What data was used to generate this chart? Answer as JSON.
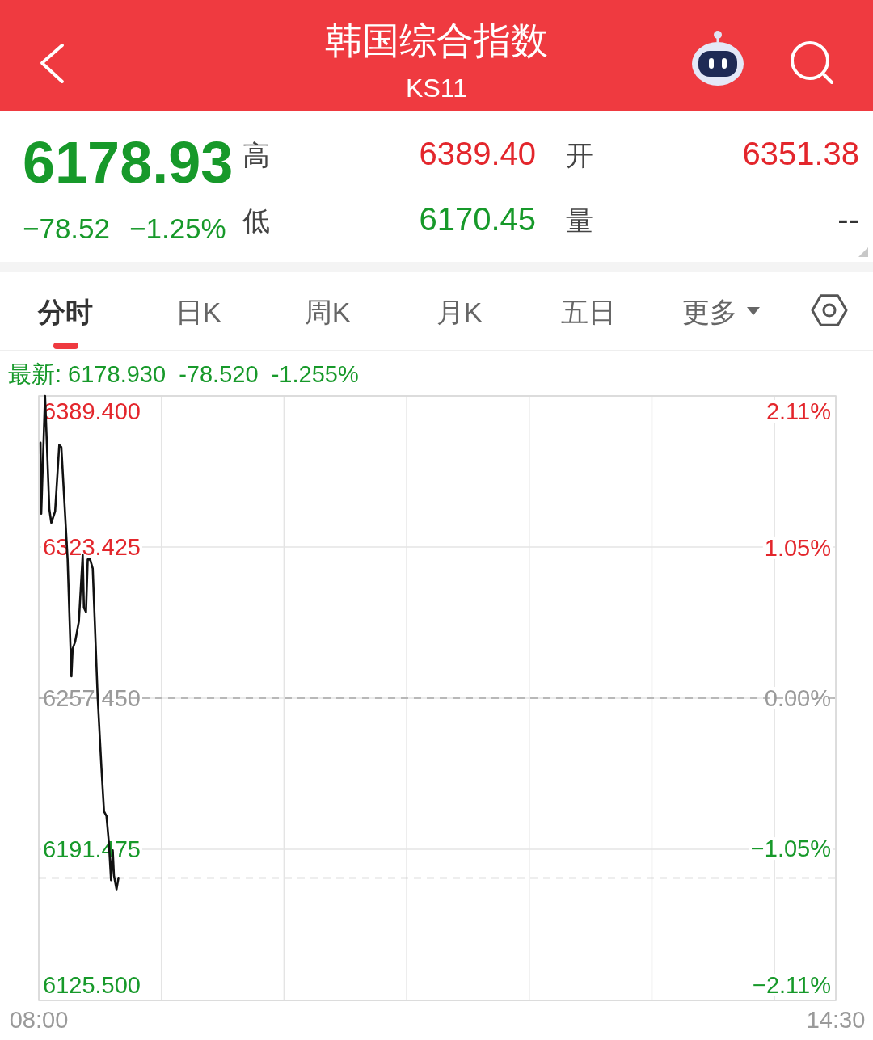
{
  "chart_data": {
    "type": "line",
    "title": "韩国综合指数",
    "subtitle": "KS11",
    "annotations": [
      "6178.93",
      "−78.52",
      "−1.25%",
      "高",
      "6389.40",
      "开",
      "6351.38",
      "低",
      "6170.45",
      "量",
      "--",
      "分时",
      "日K",
      "周K",
      "月K",
      "五日",
      "更多",
      "最新: 6178.930  -78.520  -1.255%"
    ],
    "x": [
      8.014,
      8.02,
      8.051,
      8.086,
      8.102,
      8.133,
      8.167,
      8.184,
      8.235,
      8.266,
      8.276,
      8.296,
      8.327,
      8.358,
      8.368,
      8.385,
      8.399,
      8.419,
      8.44,
      8.48,
      8.511,
      8.532,
      8.552,
      8.572,
      8.589,
      8.603,
      8.613,
      8.634,
      8.65
    ],
    "series": [
      {
        "color": "#111111",
        "values": [
          6369,
          6338,
          6389.4,
          6340,
          6334,
          6339,
          6368,
          6367,
          6318,
          6267,
          6279,
          6282,
          6291,
          6320,
          6297,
          6295,
          6318,
          6318,
          6314,
          6258,
          6227,
          6208,
          6206,
          6194,
          6178,
          6191,
          6180,
          6174,
          6179
        ]
      }
    ],
    "xlim": [
      8,
      14.5
    ],
    "xticks": [
      {
        "value": 8,
        "label": "08:00"
      },
      {
        "value": 9,
        "label": null
      },
      {
        "value": 10,
        "label": null
      },
      {
        "value": 11,
        "label": null
      },
      {
        "value": 12,
        "label": null
      },
      {
        "value": 13,
        "label": null
      },
      {
        "value": 14,
        "label": null
      },
      {
        "value": 14.5,
        "label": "14:30"
      }
    ],
    "ylim": [
      6125.5,
      6389.4
    ],
    "yticks": [
      {
        "value": 6125.5,
        "label": "6125.500"
      },
      6191.475,
      {
        "value": 6257.45,
        "label": "6257.450"
      },
      6323.425,
      {
        "value": 6389.4,
        "label": "6389.400"
      }
    ],
    "y2lim": [
      -2.11,
      2.11
    ],
    "y2ticks": [
      {
        "value": -2.11,
        "label": "−2.11%"
      },
      {
        "value": -1.05,
        "label": "−1.05%"
      },
      {
        "value": 0,
        "label": "0.00%"
      },
      {
        "value": 1.05,
        "label": "1.05%"
      },
      {
        "value": 2.11,
        "label": "2.11%"
      }
    ],
    "ref_lines": [
      {
        "axis": "y",
        "value": 6257.45,
        "color": "#a8a8a8",
        "line_style": "dashed"
      },
      {
        "axis": "y",
        "value": 6178.93,
        "color": "#bdbdbd",
        "line_style": "dashed"
      }
    ],
    "grid": true
  }
}
